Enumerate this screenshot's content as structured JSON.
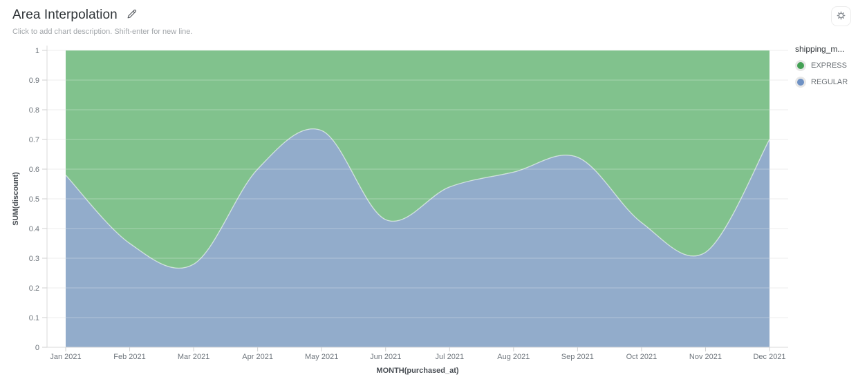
{
  "header": {
    "title": "Area Interpolation",
    "subtitle": "Click to add chart description. Shift-enter for new line."
  },
  "legend": {
    "title": "shipping_m...",
    "items": [
      {
        "label": "EXPRESS",
        "color": "#43a054"
      },
      {
        "label": "REGULAR",
        "color": "#6e91c4"
      }
    ]
  },
  "chart_data": {
    "type": "area",
    "stacked": true,
    "normalized": true,
    "interpolation": "smooth",
    "grid": true,
    "legend_position": "right",
    "title": "Area Interpolation",
    "xlabel": "MONTH(purchased_at)",
    "ylabel": "SUM(discount)",
    "ylim": [
      0,
      1
    ],
    "yticks": [
      0,
      0.1,
      0.2,
      0.3,
      0.4,
      0.5,
      0.6,
      0.7,
      0.8,
      0.9,
      1
    ],
    "x": [
      "Jan 2021",
      "Feb 2021",
      "Mar 2021",
      "Apr 2021",
      "May 2021",
      "Jun 2021",
      "Jul 2021",
      "Aug 2021",
      "Sep 2021",
      "Oct 2021",
      "Nov 2021",
      "Dec 2021"
    ],
    "series": [
      {
        "name": "REGULAR",
        "area_color": "#92accb",
        "values": [
          0.58,
          0.35,
          0.28,
          0.6,
          0.73,
          0.43,
          0.54,
          0.59,
          0.64,
          0.42,
          0.32,
          0.7
        ]
      },
      {
        "name": "EXPRESS",
        "area_color": "#81c28d",
        "values": [
          0.42,
          0.65,
          0.72,
          0.4,
          0.27,
          0.57,
          0.46,
          0.41,
          0.36,
          0.58,
          0.68,
          0.3
        ]
      }
    ]
  },
  "colors": {
    "grid": "#ededed",
    "axis_line": "#d8d8d8",
    "tick": "#cfcfcf",
    "tick_label": "#6e757c",
    "axis_title": "#4a4f55",
    "boundary_stroke": "rgba(255,255,255,0.55)",
    "grid_overlay": "rgba(255,255,255,0.30)"
  }
}
